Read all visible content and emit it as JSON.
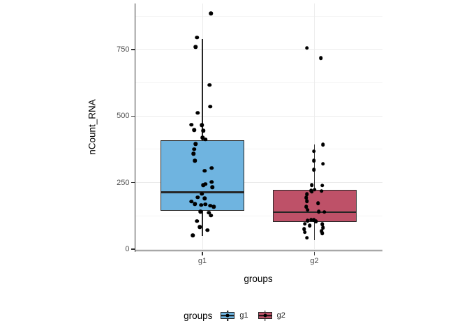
{
  "y_axis": {
    "title": "nCount_RNA",
    "tick_labels": [
      "0",
      "250",
      "500",
      "750"
    ],
    "tick_values": [
      0,
      250,
      500,
      750
    ]
  },
  "x_axis": {
    "title": "groups",
    "tick_labels": [
      "g1",
      "g2"
    ]
  },
  "legend": {
    "title": "groups",
    "items": [
      {
        "label": "g1",
        "color": "#6FB4E0"
      },
      {
        "label": "g2",
        "color": "#BE5168"
      }
    ]
  },
  "colors": {
    "g1_fill": "#6FB4E0",
    "g2_fill": "#BE5168",
    "box_border": "#262626",
    "axis_line": "#333333",
    "tick_label": "#4D4D4D",
    "grid_major": "#EBEBEB",
    "grid_minor": "#F5F5F5",
    "point": "#000000",
    "background": "#FFFFFF"
  },
  "chart_data": {
    "type": "boxplot",
    "subtype": "boxplot-with-jittered-points",
    "title": "",
    "xlabel": "groups",
    "ylabel": "nCount_RNA",
    "categories": [
      "g1",
      "g2"
    ],
    "yticks": [
      0,
      250,
      500,
      750
    ],
    "ylim": [
      0,
      925
    ],
    "grid": "major-and-minor-horizontal",
    "grid_major_y": [
      0,
      250,
      500,
      750
    ],
    "grid_minor_y": [
      125,
      375,
      625,
      875
    ],
    "legend_position": "bottom",
    "series": [
      {
        "name": "g1",
        "fill": "#6FB4E0",
        "box": {
          "whisker_min": 50,
          "q1": 145,
          "median": 213,
          "q3": 410,
          "whisker_max": 790
        },
        "points": [
          [
            885,
            12
          ],
          [
            795,
            -8
          ],
          [
            760,
            -10
          ],
          [
            617,
            10
          ],
          [
            535,
            11
          ],
          [
            512,
            -7
          ],
          [
            467,
            -16
          ],
          [
            466,
            -1
          ],
          [
            448,
            -12
          ],
          [
            445,
            1
          ],
          [
            419,
            0
          ],
          [
            412,
            4
          ],
          [
            395,
            -10
          ],
          [
            376,
            -12
          ],
          [
            358,
            -13
          ],
          [
            332,
            -11
          ],
          [
            305,
            13
          ],
          [
            294,
            3
          ],
          [
            252,
            13
          ],
          [
            245,
            4
          ],
          [
            240,
            1
          ],
          [
            233,
            14
          ],
          [
            208,
            -1
          ],
          [
            194,
            -7
          ],
          [
            191,
            3
          ],
          [
            179,
            -16
          ],
          [
            170,
            -11
          ],
          [
            168,
            4
          ],
          [
            166,
            -2
          ],
          [
            163,
            11
          ],
          [
            159,
            16
          ],
          [
            141,
            -3
          ],
          [
            137,
            9
          ],
          [
            127,
            12
          ],
          [
            105,
            -8
          ],
          [
            83,
            -4
          ],
          [
            72,
            7
          ],
          [
            52,
            -14
          ]
        ]
      },
      {
        "name": "g2",
        "fill": "#BE5168",
        "box": {
          "whisker_min": 35,
          "q1": 102,
          "median": 139,
          "q3": 224,
          "whisker_max": 392
        },
        "points": [
          [
            755,
            -11
          ],
          [
            718,
            9
          ],
          [
            393,
            12
          ],
          [
            367,
            -1
          ],
          [
            332,
            -1
          ],
          [
            321,
            12
          ],
          [
            298,
            -1
          ],
          [
            241,
            -4
          ],
          [
            239,
            11
          ],
          [
            224,
            0
          ],
          [
            219,
            -5
          ],
          [
            218,
            10
          ],
          [
            215,
            -4
          ],
          [
            206,
            -11
          ],
          [
            193,
            -12
          ],
          [
            180,
            -11
          ],
          [
            172,
            5
          ],
          [
            159,
            -12
          ],
          [
            148,
            -10
          ],
          [
            141,
            6
          ],
          [
            139,
            14
          ],
          [
            111,
            -5
          ],
          [
            109,
            -1
          ],
          [
            107,
            -10
          ],
          [
            104,
            2
          ],
          [
            95,
            -14
          ],
          [
            94,
            11
          ],
          [
            89,
            -7
          ],
          [
            81,
            12
          ],
          [
            76,
            -15
          ],
          [
            68,
            10
          ],
          [
            63,
            -14
          ],
          [
            59,
            11
          ],
          [
            43,
            -11
          ]
        ]
      }
    ],
    "points_note": "each point is [value, x_jitter_offset_px_from_group_center]"
  }
}
